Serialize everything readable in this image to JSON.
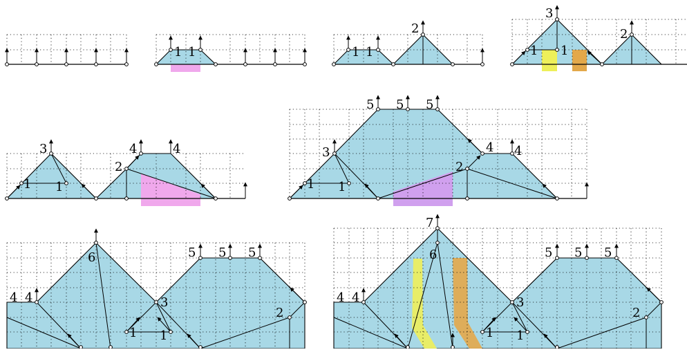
{
  "colors": {
    "region": "#a8d8e6",
    "magenta": "#f0a8ec",
    "yellow": "#eef05a",
    "orange": "#e3a84a",
    "ink": "#000000",
    "node_fill": "#ffffff"
  },
  "panels": [
    {
      "id": "step-1",
      "labels": []
    },
    {
      "id": "step-2",
      "labels": [
        "1",
        "1"
      ]
    },
    {
      "id": "step-3",
      "labels": [
        "1",
        "1",
        "2"
      ]
    },
    {
      "id": "step-4",
      "labels": [
        "3",
        "1",
        "1",
        "2"
      ]
    },
    {
      "id": "step-5",
      "labels": [
        "3",
        "1",
        "1",
        "2",
        "4",
        "4"
      ]
    },
    {
      "id": "step-6",
      "labels": [
        "5",
        "5",
        "5",
        "3",
        "1",
        "1",
        "2",
        "4",
        "4"
      ]
    },
    {
      "id": "step-7",
      "labels": [
        "6",
        "5",
        "5",
        "5",
        "4",
        "4",
        "3",
        "1",
        "1",
        "2"
      ]
    },
    {
      "id": "step-8",
      "labels": [
        "7",
        "6",
        "5",
        "5",
        "5",
        "4",
        "4",
        "3",
        "1",
        "1",
        "2"
      ]
    }
  ]
}
